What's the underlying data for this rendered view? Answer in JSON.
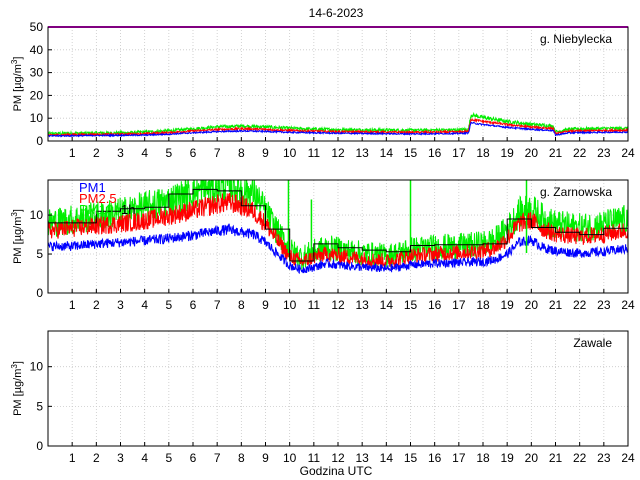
{
  "title": "14-6-2023",
  "xlabel": "Godzina UTC",
  "x_ticks": [
    "1",
    "2",
    "3",
    "4",
    "5",
    "6",
    "7",
    "8",
    "9",
    "10",
    "11",
    "12",
    "13",
    "14",
    "15",
    "16",
    "17",
    "18",
    "19",
    "20",
    "21",
    "22",
    "23",
    "24"
  ],
  "colors": {
    "pm1": "#0000ff",
    "pm25": "#ff0000",
    "pm10": "#00ee00",
    "hourly": "#000000",
    "limit": "#ff00ff",
    "grid": "#c8c8c8"
  },
  "chart_data": [
    {
      "type": "line",
      "title": "g. Niebylecka",
      "ylabel": "PM [µg/m³]",
      "ylim": [
        0,
        50
      ],
      "yticks": [
        0,
        10,
        20,
        30,
        40,
        50
      ],
      "xlim": [
        0,
        24
      ],
      "limit_line": 50,
      "series": [
        {
          "name": "PM1",
          "color": "#0000ff",
          "x": [
            0,
            1,
            2,
            3,
            4,
            5,
            6,
            7,
            8,
            9,
            10,
            11,
            12,
            13,
            14,
            15,
            16,
            17,
            17.4,
            17.5,
            18,
            19,
            20,
            20.9,
            21,
            21.5,
            22,
            23,
            24
          ],
          "y": [
            2.2,
            2.3,
            2.4,
            2.5,
            2.6,
            3,
            3.6,
            4.1,
            4.4,
            4.2,
            3.8,
            3.6,
            3.4,
            3.3,
            3.2,
            3.1,
            3.2,
            3.3,
            3.5,
            8,
            7.2,
            6,
            5.1,
            4.6,
            2.6,
            3.5,
            3.7,
            3.8,
            3.9
          ]
        },
        {
          "name": "PM2.5",
          "color": "#ff0000",
          "x": [
            0,
            1,
            2,
            3,
            4,
            5,
            6,
            7,
            8,
            9,
            10,
            11,
            12,
            13,
            14,
            15,
            16,
            17,
            17.4,
            17.5,
            18,
            19,
            20,
            20.9,
            21,
            21.5,
            22,
            23,
            24
          ],
          "y": [
            2.6,
            2.8,
            2.9,
            3,
            3.2,
            3.7,
            4.4,
            5,
            5.4,
            5.1,
            4.6,
            4.3,
            4.1,
            4,
            3.9,
            3.8,
            3.9,
            4,
            4.2,
            9.5,
            8.6,
            7.2,
            6.1,
            5.5,
            3.2,
            4.2,
            4.4,
            4.6,
            4.7
          ]
        },
        {
          "name": "PM10",
          "color": "#00ee00",
          "x": [
            0,
            1,
            2,
            3,
            4,
            5,
            6,
            7,
            8,
            9,
            10,
            11,
            12,
            13,
            14,
            15,
            16,
            17,
            17.4,
            17.5,
            18,
            19,
            20,
            20.9,
            21,
            21.5,
            22,
            23,
            24
          ],
          "y": [
            3.2,
            3.4,
            3.5,
            3.6,
            3.9,
            4.5,
            5.4,
            6.2,
            6.6,
            6.2,
            5.6,
            5.2,
            5,
            4.9,
            4.8,
            4.7,
            4.8,
            4.9,
            5.2,
            11.5,
            10.3,
            8.6,
            7.3,
            6.6,
            4,
            5.1,
            5.3,
            5.5,
            5.6
          ]
        }
      ],
      "hourly": []
    },
    {
      "type": "line",
      "title": "g. Zarnowska",
      "ylabel": "PM [µg/m³]",
      "ylim": [
        0,
        14.5
      ],
      "yticks": [
        0,
        5,
        10
      ],
      "xlim": [
        0,
        24
      ],
      "legend": [
        "PM1",
        "PM2.5",
        "PM10",
        "1h"
      ],
      "series": [
        {
          "name": "PM1",
          "color": "#0000ff",
          "x": [
            0,
            1,
            2,
            3,
            4,
            5,
            6,
            7,
            7.5,
            8,
            8.5,
            9,
            9.5,
            10,
            10.5,
            11,
            11.5,
            12,
            13,
            14,
            14.5,
            15,
            16,
            17,
            18,
            18.5,
            19,
            19.5,
            20,
            20.5,
            21,
            22,
            23,
            24
          ],
          "y": [
            6,
            6,
            6.3,
            6.5,
            6.7,
            7,
            7.4,
            8,
            8.1,
            7.8,
            7.5,
            6.5,
            5,
            3.5,
            3,
            3.3,
            3.8,
            3.6,
            3.3,
            3.1,
            3.3,
            3.6,
            3.8,
            3.9,
            4,
            4.3,
            5,
            6.5,
            6.8,
            5.8,
            5.4,
            5.1,
            5.3,
            5.7
          ]
        },
        {
          "name": "PM2.5",
          "color": "#ff0000",
          "x": [
            0,
            1,
            2,
            3,
            4,
            5,
            6,
            7,
            7.5,
            8,
            8.5,
            9,
            9.5,
            10,
            10.5,
            11,
            11.5,
            12,
            13,
            14,
            14.5,
            15,
            16,
            17,
            18,
            18.5,
            19,
            19.5,
            20,
            20.5,
            21,
            22,
            23,
            24
          ],
          "y": [
            8,
            8.3,
            8.6,
            8.9,
            9.3,
            9.9,
            10.6,
            11.4,
            11.6,
            11.2,
            10.5,
            8.9,
            6.7,
            4.7,
            4,
            4.6,
            5,
            4.8,
            4.4,
            4.1,
            4.4,
            4.8,
            5,
            5.2,
            5.4,
            5.8,
            7,
            8.9,
            9.3,
            8.2,
            7.6,
            7.2,
            7.5,
            8.1
          ]
        },
        {
          "name": "PM10",
          "color": "#00ee00",
          "x": [
            0,
            1,
            2,
            3,
            4,
            5,
            6,
            7,
            7.5,
            8,
            8.5,
            9,
            9.5,
            10,
            10.5,
            11,
            11.5,
            12,
            13,
            14,
            14.5,
            15,
            16,
            17,
            18,
            18.5,
            19,
            19.5,
            20,
            20.5,
            21,
            22,
            23,
            24
          ],
          "y": [
            9,
            9.4,
            9.8,
            10.3,
            11,
            11.8,
            12.9,
            13.6,
            13.9,
            13.4,
            12.8,
            10.5,
            7.8,
            5.5,
            4.6,
            5.3,
            5.8,
            5.6,
            5.1,
            4.8,
            5.1,
            5.6,
            5.9,
            6,
            6.3,
            6.8,
            8.2,
            10.3,
            10.8,
            9.5,
            8.8,
            8.4,
            8.8,
            9.5
          ]
        }
      ],
      "spikes": [
        {
          "x": 9.95,
          "y": 14.5
        },
        {
          "x": 10.9,
          "y": 12
        },
        {
          "x": 15.0,
          "y": 14.5
        },
        {
          "x": 19.8,
          "y": 14.5
        }
      ],
      "hourly": [
        9,
        9,
        10.5,
        10.8,
        11,
        12.7,
        13.3,
        13.1,
        11.2,
        8.2,
        4.1,
        6.3,
        5.8,
        5.5,
        5.3,
        6.1,
        6.2,
        6.2,
        6.3,
        9.5,
        8.4,
        7.8,
        7.5,
        8.3
      ]
    },
    {
      "type": "line",
      "title": "Zawale",
      "ylabel": "PM [µg/m³]",
      "ylim": [
        0,
        14.5
      ],
      "yticks": [
        0,
        5,
        10
      ],
      "xlim": [
        0,
        24
      ],
      "series": [],
      "hourly": []
    }
  ]
}
